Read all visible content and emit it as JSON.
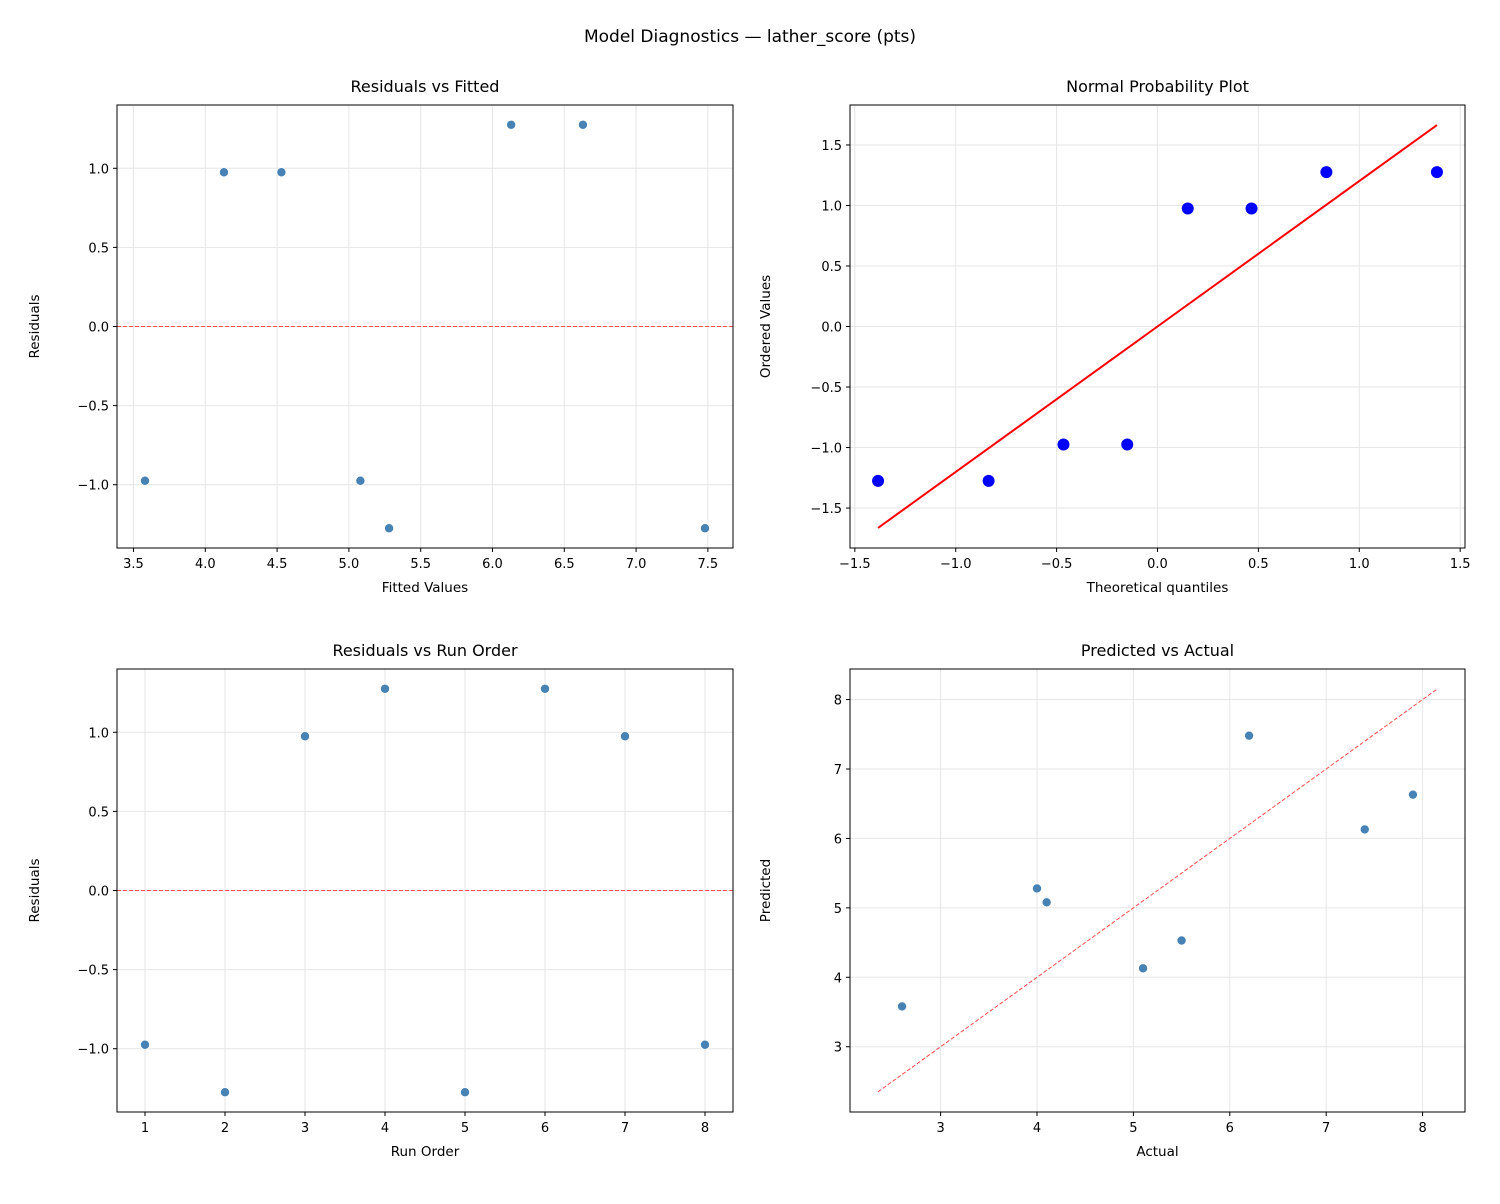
{
  "title": "Model Diagnostics — lather_score (pts)",
  "chart_data": [
    {
      "type": "scatter",
      "title": "Residuals vs Fitted",
      "xlabel": "Fitted Values",
      "ylabel": "Residuals",
      "x": [
        3.58,
        4.13,
        4.53,
        5.08,
        5.28,
        6.13,
        6.63,
        7.48
      ],
      "y": [
        -0.975,
        0.975,
        0.975,
        -0.975,
        -1.275,
        1.275,
        1.275,
        -1.275
      ],
      "xlim": [
        3.385,
        7.675
      ],
      "ylim": [
        -1.4,
        1.4
      ],
      "xticks": [
        "3.5",
        "4.0",
        "4.5",
        "5.0",
        "5.5",
        "6.0",
        "6.5",
        "7.0",
        "7.5"
      ],
      "yticks": [
        "−1.0",
        "−0.5",
        "0.0",
        "0.5",
        "1.0"
      ],
      "reference_line": {
        "type": "horizontal",
        "y": 0,
        "style": "dashed",
        "color": "#ff4d4d"
      },
      "point_color": "#4682b4",
      "grid": true
    },
    {
      "type": "scatter",
      "title": "Normal Probability Plot",
      "xlabel": "Theoretical quantiles",
      "ylabel": "Ordered Values",
      "x": [
        -1.385,
        -0.837,
        -0.466,
        -0.15,
        0.15,
        0.466,
        0.837,
        1.385
      ],
      "y": [
        -1.275,
        -1.275,
        -0.975,
        -0.975,
        0.975,
        0.975,
        1.275,
        1.275
      ],
      "xlim": [
        -1.524,
        1.524
      ],
      "ylim": [
        -1.83,
        1.83
      ],
      "xticks": [
        "−1.5",
        "−1.0",
        "−0.5",
        "0.0",
        "0.5",
        "1.0",
        "1.5"
      ],
      "yticks": [
        "−1.5",
        "−1.0",
        "−0.5",
        "0.0",
        "0.5",
        "1.0",
        "1.5"
      ],
      "fit_line": {
        "slope": 1.2015,
        "intercept": 0,
        "color": "#ff0000"
      },
      "point_color": "#0000ff",
      "grid": true
    },
    {
      "type": "scatter",
      "title": "Residuals vs Run Order",
      "xlabel": "Run Order",
      "ylabel": "Residuals",
      "x": [
        1,
        2,
        3,
        4,
        5,
        6,
        7,
        8
      ],
      "y": [
        -0.975,
        -1.275,
        0.975,
        1.275,
        -1.275,
        1.275,
        0.975,
        -0.975
      ],
      "xlim": [
        0.65,
        8.35
      ],
      "ylim": [
        -1.4,
        1.4
      ],
      "xticks": [
        "1",
        "2",
        "3",
        "4",
        "5",
        "6",
        "7",
        "8"
      ],
      "yticks": [
        "−1.0",
        "−0.5",
        "0.0",
        "0.5",
        "1.0"
      ],
      "reference_line": {
        "type": "horizontal",
        "y": 0,
        "style": "dashed",
        "color": "#ff4d4d"
      },
      "point_color": "#4682b4",
      "grid": true
    },
    {
      "type": "scatter",
      "title": "Predicted vs Actual",
      "xlabel": "Actual",
      "ylabel": "Predicted",
      "x": [
        2.6,
        5.1,
        5.5,
        4.1,
        4.0,
        7.4,
        7.9,
        6.2
      ],
      "y": [
        3.58,
        4.13,
        4.53,
        5.08,
        5.28,
        6.13,
        6.63,
        7.48
      ],
      "xlim": [
        2.06,
        8.44
      ],
      "ylim": [
        2.06,
        8.44
      ],
      "xticks": [
        "3",
        "4",
        "5",
        "6",
        "7",
        "8"
      ],
      "yticks": [
        "3",
        "4",
        "5",
        "6",
        "7",
        "8"
      ],
      "reference_line": {
        "type": "diagonal",
        "from": 2.35,
        "to": 8.15,
        "style": "dashed",
        "color": "#ff4d4d"
      },
      "point_color": "#4682b4",
      "grid": true
    }
  ]
}
